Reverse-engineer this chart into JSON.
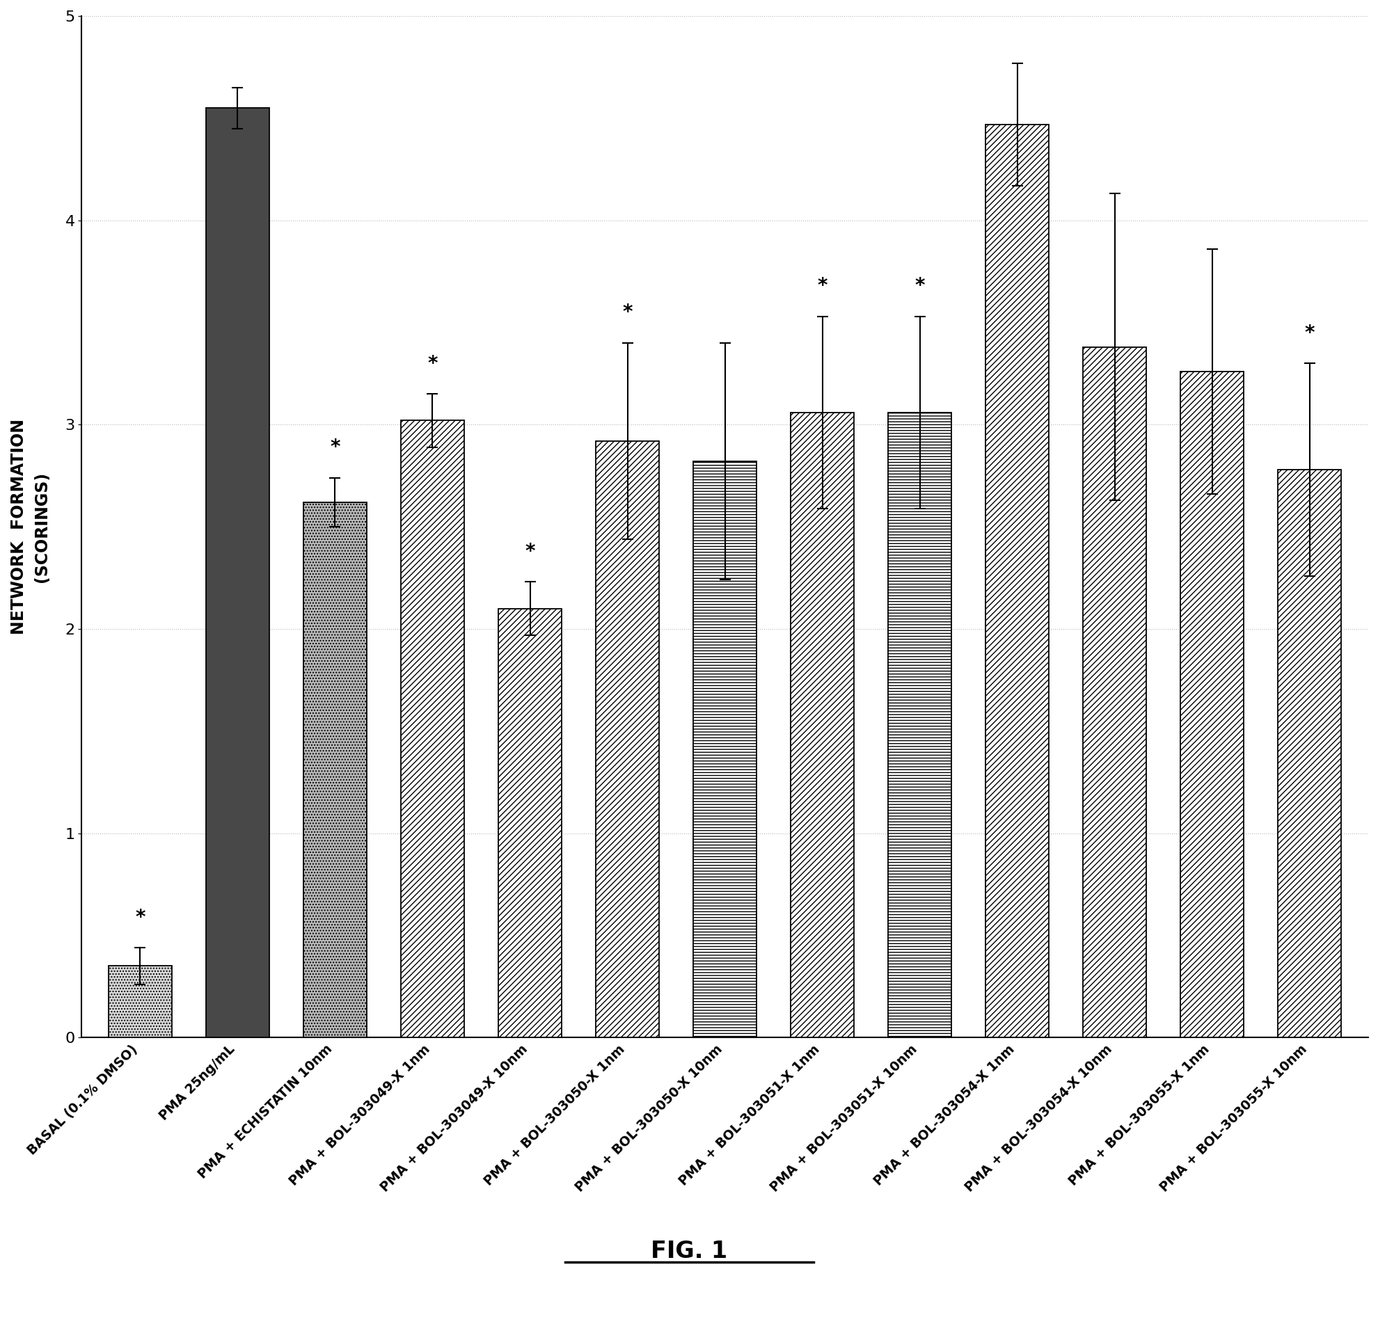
{
  "categories": [
    "BASAL (0.1% DMSO)",
    "PMA 25ng/mL",
    "PMA + ECHISTATIN 10nm",
    "PMA + BOL-303049-X 1nm",
    "PMA + BOL-303049-X 10nm",
    "PMA + BOL-303050-X 1nm",
    "PMA + BOL-303050-X 10nm",
    "PMA + BOL-303051-X 1nm",
    "PMA + BOL-303051-X 10nm",
    "PMA + BOL-303054-X 1nm",
    "PMA + BOL-303054-X 10nm",
    "PMA + BOL-303055-X 1nm",
    "PMA + BOL-303055-X 10nm"
  ],
  "values": [
    0.35,
    4.55,
    2.62,
    3.02,
    2.1,
    2.92,
    2.82,
    3.06,
    3.06,
    4.47,
    3.38,
    3.26,
    2.78
  ],
  "errors": [
    0.09,
    0.1,
    0.12,
    0.13,
    0.13,
    0.48,
    0.58,
    0.47,
    0.47,
    0.3,
    0.75,
    0.6,
    0.52
  ],
  "ylabel_line1": "NETWORK  FORMATION",
  "ylabel_line2": "(SCORINGS)",
  "ylim": [
    0.0,
    5.0
  ],
  "yticks": [
    0.0,
    1.0,
    2.0,
    3.0,
    4.0,
    5.0
  ],
  "title": "FIG. 1",
  "background_color": "#ffffff",
  "asterisk_indices": [
    0,
    2,
    3,
    4,
    5,
    7,
    8,
    12
  ],
  "fig_width": 19.81,
  "fig_height": 19.03,
  "face_colors": [
    "#d8d8d8",
    "#484848",
    "#b8b8b8",
    "#ffffff",
    "#ffffff",
    "#ffffff",
    "#ffffff",
    "#ffffff",
    "#ffffff",
    "#ffffff",
    "#ffffff",
    "#ffffff",
    "#ffffff"
  ],
  "hatch_patterns": [
    "....",
    "",
    "....",
    "////",
    "////",
    "////",
    "----",
    "////",
    "----",
    "////",
    "////",
    "////",
    "////"
  ]
}
